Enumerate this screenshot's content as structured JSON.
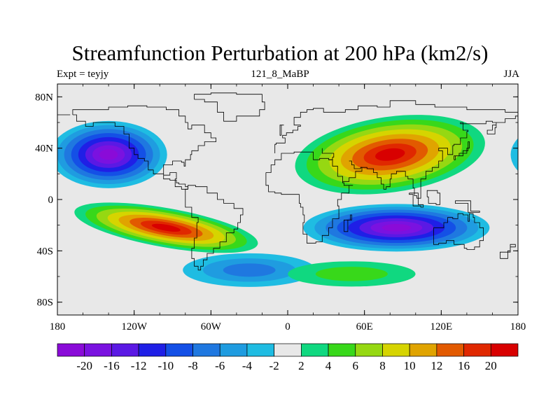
{
  "title": "Streamfunction Perturbation at 200 hPa (km2/s)",
  "subtitle_left": "Expt = teyjy",
  "subtitle_center": "121_8_MaBP",
  "subtitle_right": "JJA",
  "x_tick_labels": [
    "180",
    "120W",
    "60W",
    "0",
    "60E",
    "120E",
    "180"
  ],
  "y_tick_labels": [
    "80N",
    "40N",
    "0",
    "40S",
    "80S"
  ],
  "colorbar": {
    "labels": [
      "-20",
      "-16",
      "-12",
      "-10",
      "-8",
      "-6",
      "-4",
      "-2",
      "2",
      "4",
      "6",
      "8",
      "10",
      "12",
      "16",
      "20"
    ],
    "colors": [
      "#8a0bd8",
      "#7a12e0",
      "#5b19e4",
      "#1f1fe6",
      "#1450e6",
      "#1f78e0",
      "#1f9ce0",
      "#1fbce2",
      "#e8e8e8",
      "#10d880",
      "#38d81a",
      "#96d812",
      "#d6d400",
      "#e0a400",
      "#e25a00",
      "#e02800",
      "#d80000"
    ]
  },
  "map_data": {
    "projection": "cylindrical-equidistant",
    "lon_range": [
      -180,
      180
    ],
    "lat_range": [
      -90,
      90
    ],
    "fill_levels": [
      -20,
      -16,
      -12,
      -10,
      -8,
      -6,
      -4,
      -2,
      2,
      4,
      6,
      8,
      10,
      12,
      16,
      20
    ],
    "features": [
      {
        "name": "north-pacific-low",
        "lon": -140,
        "lat": 35,
        "value": -22
      },
      {
        "name": "tropical-pacific-high",
        "lon": -95,
        "lat": -22,
        "value": 21
      },
      {
        "name": "asian-high",
        "lon": 80,
        "lat": 35,
        "value": 22
      },
      {
        "name": "south-indian-low",
        "lon": 85,
        "lat": -22,
        "value": -22
      },
      {
        "name": "south-atlantic-low",
        "lon": -30,
        "lat": -55,
        "value": -6
      },
      {
        "name": "south-atlantic-high",
        "lon": 50,
        "lat": -58,
        "value": 5
      }
    ]
  }
}
